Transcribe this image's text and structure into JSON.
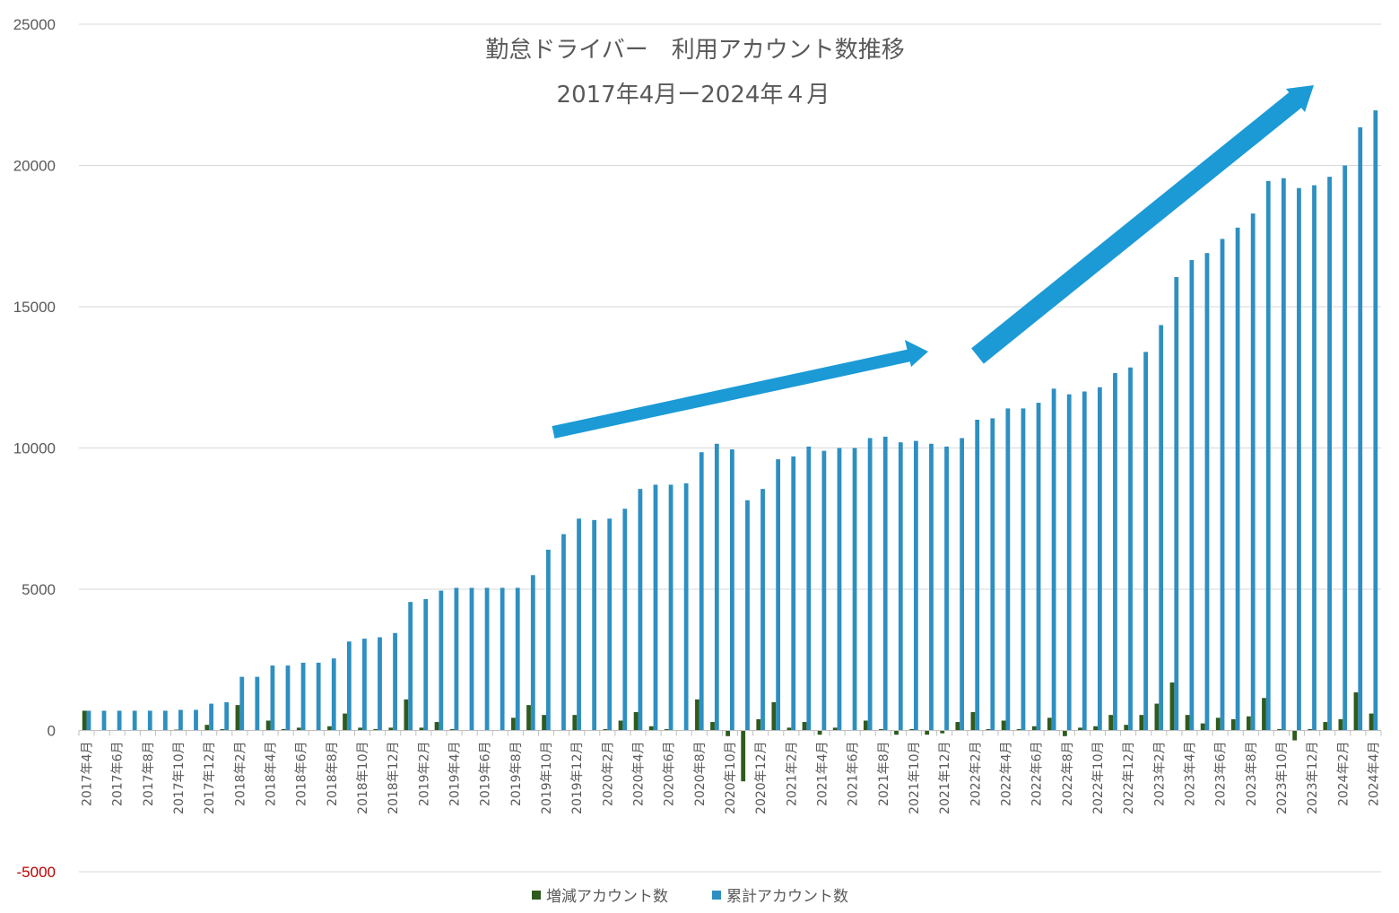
{
  "chart_data": {
    "type": "bar",
    "title": "勤怠ドライバー　利用アカウント数推移",
    "subtitle": "2017年4月ー2024年４月",
    "ylim": [
      -5000,
      25000
    ],
    "yticks": [
      "25000",
      "20000",
      "15000",
      "10000",
      "5000",
      "0",
      "-5000"
    ],
    "grid": true,
    "legend_position": "bottom",
    "colors": {
      "increase": "#2f5b1e",
      "cumulative": "#2e8fc1",
      "negative_tick": "#c00000",
      "arrow": "#1b9ad6"
    },
    "categories": [
      "2017年4月",
      "2017年5月",
      "2017年6月",
      "2017年7月",
      "2017年8月",
      "2017年9月",
      "2017年10月",
      "2017年11月",
      "2017年12月",
      "2018年1月",
      "2018年2月",
      "2018年3月",
      "2018年4月",
      "2018年5月",
      "2018年6月",
      "2018年7月",
      "2018年8月",
      "2018年9月",
      "2018年10月",
      "2018年11月",
      "2018年12月",
      "2019年1月",
      "2019年2月",
      "2019年3月",
      "2019年4月",
      "2019年5月",
      "2019年6月",
      "2019年7月",
      "2019年8月",
      "2019年9月",
      "2019年10月",
      "2019年11月",
      "2019年12月",
      "2020年1月",
      "2020年2月",
      "2020年3月",
      "2020年4月",
      "2020年5月",
      "2020年6月",
      "2020年7月",
      "2020年8月",
      "2020年9月",
      "2020年10月",
      "2020年11月",
      "2020年12月",
      "2021年1月",
      "2021年2月",
      "2021年3月",
      "2021年4月",
      "2021年5月",
      "2021年6月",
      "2021年7月",
      "2021年8月",
      "2021年9月",
      "2021年10月",
      "2021年11月",
      "2021年12月",
      "2022年1月",
      "2022年2月",
      "2022年3月",
      "2022年4月",
      "2022年5月",
      "2022年6月",
      "2022年7月",
      "2022年8月",
      "2022年9月",
      "2022年10月",
      "2022年11月",
      "2022年12月",
      "2023年1月",
      "2023年2月",
      "2023年3月",
      "2023年4月",
      "2023年5月",
      "2023年6月",
      "2023年7月",
      "2023年8月",
      "2023年9月",
      "2023年10月",
      "2023年11月",
      "2023年12月",
      "2024年1月",
      "2024年2月",
      "2024年3月",
      "2024年4月"
    ],
    "tick_labels": [
      "2017年4月",
      "2017年6月",
      "2017年8月",
      "2017年10月",
      "2017年12月",
      "2018年2月",
      "2018年4月",
      "2018年6月",
      "2018年8月",
      "2018年10月",
      "2018年12月",
      "2019年2月",
      "2019年4月",
      "2019年6月",
      "2019年8月",
      "2019年10月",
      "2019年12月",
      "2020年2月",
      "2020年4月",
      "2020年6月",
      "2020年8月",
      "2020年10月",
      "2020年12月",
      "2021年2月",
      "2021年4月",
      "2021年6月",
      "2021年8月",
      "2021年10月",
      "2021年12月",
      "2022年2月",
      "2022年4月",
      "2022年6月",
      "2022年8月",
      "2022年10月",
      "2022年12月",
      "2023年2月",
      "2023年4月",
      "2023年6月",
      "2023年8月",
      "2023年10月",
      "2023年12月",
      "2024年2月",
      "2024年4月"
    ],
    "series": [
      {
        "name": "増減アカウント数",
        "values": [
          700,
          0,
          0,
          0,
          0,
          0,
          30,
          0,
          200,
          50,
          900,
          0,
          350,
          50,
          100,
          0,
          150,
          600,
          100,
          50,
          100,
          1100,
          100,
          300,
          50,
          0,
          0,
          0,
          450,
          900,
          550,
          0,
          550,
          0,
          50,
          350,
          650,
          150,
          50,
          0,
          1100,
          300,
          -200,
          -1800,
          400,
          1000,
          100,
          300,
          -150,
          100,
          0,
          350,
          50,
          -150,
          50,
          -150,
          -100,
          300,
          650,
          50,
          350,
          50,
          150,
          450,
          -200,
          100,
          150,
          550,
          200,
          550,
          950,
          1700,
          550,
          250,
          450,
          400,
          500,
          1150,
          50,
          -350,
          50,
          300,
          400,
          1350,
          600
        ]
      },
      {
        "name": "累計アカウント数",
        "values": [
          700,
          700,
          700,
          700,
          700,
          700,
          730,
          730,
          950,
          1000,
          1900,
          1900,
          2300,
          2300,
          2400,
          2400,
          2550,
          3150,
          3250,
          3300,
          3450,
          4550,
          4650,
          4950,
          5050,
          5050,
          5050,
          5050,
          5050,
          5500,
          6400,
          6950,
          7500,
          7450,
          7500,
          7850,
          8550,
          8700,
          8700,
          8750,
          9850,
          10150,
          9950,
          8150,
          8550,
          9600,
          9700,
          10050,
          9900,
          10000,
          10000,
          10350,
          10400,
          10200,
          10250,
          10150,
          10050,
          10350,
          11000,
          11050,
          11400,
          11400,
          11600,
          12100,
          11900,
          12000,
          12150,
          12650,
          12850,
          13400,
          14350,
          16050,
          16650,
          16900,
          17400,
          17800,
          18300,
          19450,
          19550,
          19200,
          19300,
          19600,
          20000,
          21350,
          21950
        ]
      }
    ]
  },
  "legend": [
    {
      "label": "増減アカウント数",
      "color": "#2f5b1e"
    },
    {
      "label": "累計アカウント数",
      "color": "#2e8fc1"
    }
  ]
}
